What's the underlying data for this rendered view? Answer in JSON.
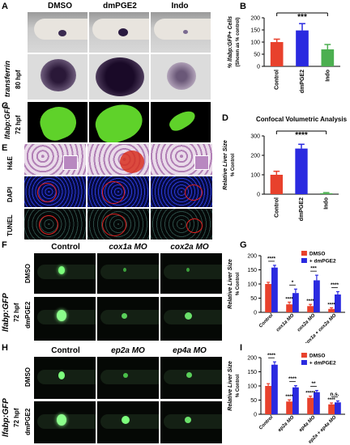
{
  "panels": {
    "A": "A",
    "B": "B",
    "C": "C",
    "D": "D",
    "E": "E",
    "F": "F",
    "G": "G",
    "H": "H",
    "I": "I"
  },
  "top_columns": [
    "DMSO",
    "dmPGE2",
    "Indo"
  ],
  "panel_a": {
    "gene": "transferrin",
    "stage": "80 hpf"
  },
  "panel_c": {
    "line": "lfabp:GFP",
    "stage": "72 hpf"
  },
  "panel_e": {
    "rows": [
      "H&E",
      "DAPI",
      "TUNEL"
    ]
  },
  "panel_f": {
    "columns": [
      "Control",
      "cox1a MO",
      "cox2a MO"
    ],
    "rows": [
      "DMSO",
      "dmPGE2"
    ],
    "side": "lfabp:GFP",
    "stage": "72 hpf"
  },
  "panel_h": {
    "columns": [
      "Control",
      "ep2a MO",
      "ep4a MO"
    ],
    "rows": [
      "DMSO",
      "dmPGE2"
    ],
    "side": "lfabp:GFP",
    "stage": "72 hpf"
  },
  "colors": {
    "control": "#e8412c",
    "dmpge": "#2a2ae0",
    "indo": "#4caf50",
    "dmso": "#e8412c"
  },
  "chart_data": [
    {
      "id": "B",
      "type": "bar",
      "ylabel": "% lfabp:GFP+ Cells",
      "ylabel2": "(Shown as % control)",
      "ylim": [
        0,
        200
      ],
      "yticks": [
        0,
        50,
        100,
        150,
        200
      ],
      "categories": [
        "Control",
        "dmPGE2",
        "Indo"
      ],
      "values": [
        100,
        148,
        70
      ],
      "errors": [
        12,
        28,
        20
      ],
      "bar_colors": [
        "#e8412c",
        "#2a2ae0",
        "#4caf50"
      ],
      "significance": "***"
    },
    {
      "id": "D",
      "type": "bar",
      "title": "Confocal Volumetric Analysis",
      "ylabel": "Relative Liver Size",
      "ylabel2": "% Control",
      "ylim": [
        0,
        300
      ],
      "yticks": [
        0,
        100,
        200,
        300
      ],
      "categories": [
        "Control",
        "dmPGE2",
        "Indo"
      ],
      "values": [
        100,
        235,
        5
      ],
      "errors": [
        18,
        22,
        3
      ],
      "bar_colors": [
        "#e8412c",
        "#2a2ae0",
        "#4caf50"
      ],
      "significance": "****"
    },
    {
      "id": "G",
      "type": "bar",
      "ylabel": "Relative Liver Size",
      "ylabel2": "% Control",
      "ylim": [
        0,
        200
      ],
      "yticks": [
        0,
        50,
        100,
        150,
        200
      ],
      "categories": [
        "Control",
        "cox1a MO",
        "cox2a MO",
        "cox1a + cox2a MO"
      ],
      "series": [
        {
          "name": "DMSO",
          "values": [
            100,
            28,
            22,
            12
          ],
          "errors": [
            6,
            8,
            6,
            4
          ]
        },
        {
          "name": "+ dmPGE2",
          "values": [
            158,
            68,
            113,
            63
          ],
          "errors": [
            8,
            14,
            18,
            10
          ]
        }
      ],
      "significance": [
        "****",
        "*",
        "***",
        "****"
      ],
      "lower_significance": [
        "",
        "****",
        "****",
        "****"
      ]
    },
    {
      "id": "I",
      "type": "bar",
      "ylabel": "Relative Liver Size",
      "ylabel2": "% Control",
      "ylim": [
        0,
        200
      ],
      "yticks": [
        0,
        50,
        100,
        150,
        200
      ],
      "categories": [
        "Control",
        "ep2a MO",
        "ep4a MO",
        "ep2a + ep4a MO"
      ],
      "series": [
        {
          "name": "DMSO",
          "values": [
            100,
            45,
            58,
            35
          ],
          "errors": [
            8,
            6,
            6,
            5
          ]
        },
        {
          "name": "+ dmPGE2",
          "values": [
            175,
            95,
            78,
            42
          ],
          "errors": [
            10,
            6,
            6,
            5
          ]
        }
      ],
      "significance": [
        "****",
        "****",
        "**",
        "n.s."
      ],
      "lower_significance": [
        "",
        "****",
        "*****",
        "****"
      ]
    }
  ]
}
